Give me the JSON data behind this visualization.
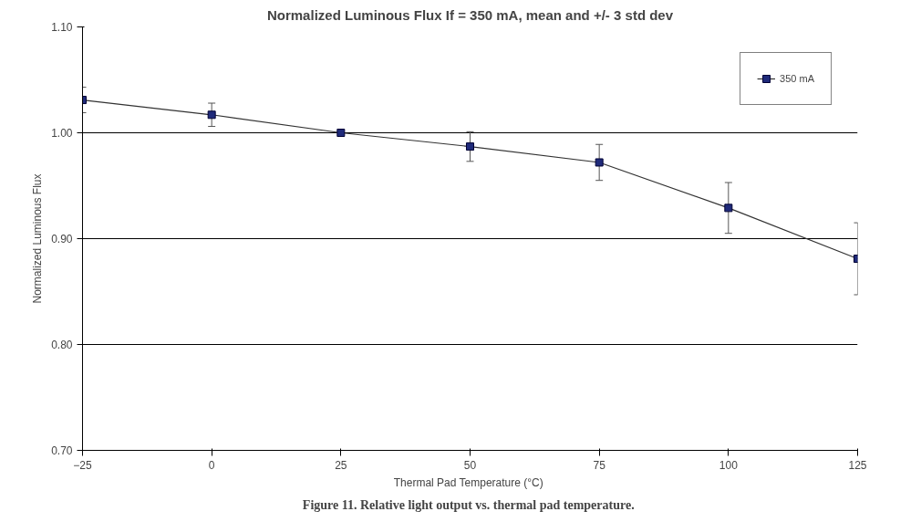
{
  "chart_data": {
    "type": "line",
    "title": "Normalized Luminous Flux If = 350 mA, mean and +/- 3 std dev",
    "xlabel": "Thermal Pad Temperature  (°C)",
    "ylabel": "Normalized Luminous Flux",
    "x": [
      -25,
      0,
      25,
      50,
      75,
      100,
      125
    ],
    "series": [
      {
        "name": "350 mA",
        "color": "#1f2a7a",
        "values": [
          1.031,
          1.017,
          1.0,
          0.987,
          0.972,
          0.929,
          0.881
        ],
        "errors": [
          0.012,
          0.011,
          null,
          0.014,
          0.017,
          0.024,
          0.034
        ]
      }
    ],
    "xlim": [
      -25,
      125
    ],
    "xticks": [
      -25,
      0,
      25,
      50,
      75,
      100,
      125
    ],
    "ylim": [
      0.7,
      1.1
    ],
    "yticks": [
      {
        "value": 0.7,
        "label": "0.70"
      },
      {
        "value": 0.8,
        "label": "0.80"
      },
      {
        "value": 0.9,
        "label": "0.90"
      },
      {
        "value": 1.0,
        "label": "1.00"
      },
      {
        "value": 1.1,
        "label": "1.10"
      }
    ],
    "grid": "y",
    "legend": "top right",
    "marker": "square",
    "line_style": "solid",
    "annotations": [
      "Figure 11.  Relative light output vs. thermal pad temperature."
    ]
  }
}
